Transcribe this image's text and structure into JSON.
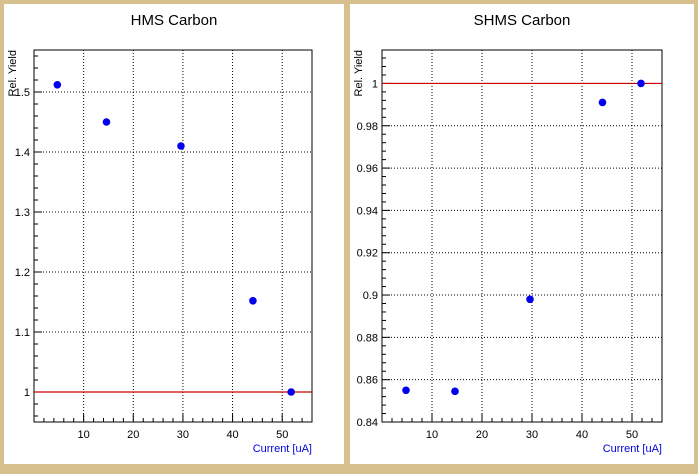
{
  "chart_data": [
    {
      "type": "scatter",
      "title": "HMS Carbon",
      "xlabel": "Current [uA]",
      "ylabel": "Rel. Yield",
      "xlim": [
        0,
        56
      ],
      "ylim": [
        0.95,
        1.57
      ],
      "xticks": [
        10,
        20,
        30,
        40,
        50
      ],
      "xtick_labels": [
        "10",
        "20",
        "30",
        "40",
        "50"
      ],
      "yticks": [
        1.0,
        1.1,
        1.2,
        1.3,
        1.4,
        1.5
      ],
      "ytick_labels": [
        "1",
        "1.1",
        "1.2",
        "1.3",
        "1.4",
        "1.5"
      ],
      "grid": true,
      "reference_line": 1.0,
      "line_color": "#cc0000",
      "marker_color": "#0000ee",
      "axis_label_color": "#0000dd",
      "points": [
        {
          "x": 4.7,
          "y": 1.512
        },
        {
          "x": 14.6,
          "y": 1.45
        },
        {
          "x": 29.6,
          "y": 1.41
        },
        {
          "x": 44.1,
          "y": 1.152
        },
        {
          "x": 51.8,
          "y": 1.0
        }
      ]
    },
    {
      "type": "scatter",
      "title": "SHMS Carbon",
      "xlabel": "Current [uA]",
      "ylabel": "Rel. Yield",
      "xlim": [
        0,
        56
      ],
      "ylim": [
        0.84,
        1.0158
      ],
      "xticks": [
        10,
        20,
        30,
        40,
        50
      ],
      "xtick_labels": [
        "10",
        "20",
        "30",
        "40",
        "50"
      ],
      "yticks": [
        0.84,
        0.86,
        0.88,
        0.9,
        0.92,
        0.94,
        0.96,
        0.98,
        1.0
      ],
      "ytick_labels": [
        "0.84",
        "0.86",
        "0.88",
        "0.9",
        "0.92",
        "0.94",
        "0.96",
        "0.98",
        "1"
      ],
      "grid": true,
      "reference_line": 1.0,
      "line_color": "#cc0000",
      "marker_color": "#0000ee",
      "axis_label_color": "#0000dd",
      "points": [
        {
          "x": 4.8,
          "y": 0.855
        },
        {
          "x": 14.6,
          "y": 0.8545
        },
        {
          "x": 29.6,
          "y": 0.898
        },
        {
          "x": 44.1,
          "y": 0.991
        },
        {
          "x": 51.8,
          "y": 1.0
        }
      ]
    }
  ]
}
